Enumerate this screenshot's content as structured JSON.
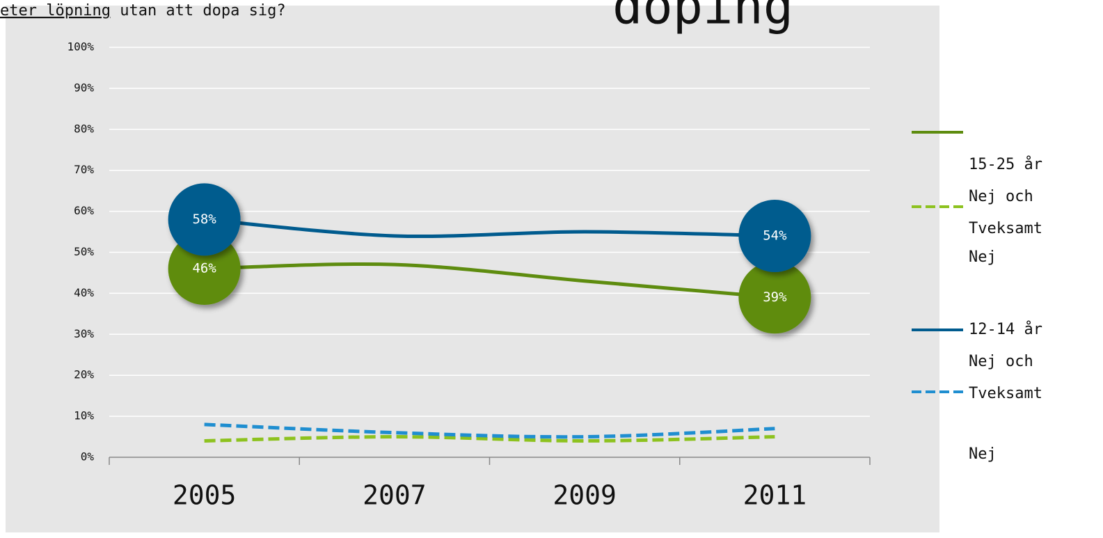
{
  "chart_data": {
    "type": "line",
    "title": "doping",
    "subtitle": [
      "eter löpning",
      "utan att dopa sig?"
    ],
    "categories": [
      "2005",
      "2007",
      "2009",
      "2011"
    ],
    "series": [
      {
        "name": "15-25 år\nNej och\nTveksamt",
        "color": "#5e8c0f",
        "dash": false,
        "values": [
          46,
          47,
          43,
          39
        ],
        "value_labels": [
          "46%",
          null,
          null,
          "39%"
        ]
      },
      {
        "name": "Nej",
        "color": "#8dc21f",
        "dash": true,
        "values": [
          4,
          5,
          4,
          5
        ]
      },
      {
        "name": "12-14 år\nNej och\nTveksamt",
        "color": "#005b8e",
        "dash": false,
        "values": [
          58,
          54,
          55,
          54
        ],
        "value_labels": [
          "58%",
          null,
          null,
          "54%"
        ]
      },
      {
        "name": "Nej",
        "color": "#1f8ed0",
        "dash": true,
        "values": [
          8,
          6,
          5,
          7
        ]
      }
    ],
    "ylim": [
      0,
      100
    ],
    "yticks": [
      {
        "value": 0,
        "label": "0%"
      },
      {
        "value": 10,
        "label": "10%"
      },
      {
        "value": 20,
        "label": "20%"
      },
      {
        "value": 30,
        "label": "30%"
      },
      {
        "value": 40,
        "label": "40%"
      },
      {
        "value": 50,
        "label": "50%"
      },
      {
        "value": 60,
        "label": "60%"
      },
      {
        "value": 70,
        "label": "70%"
      },
      {
        "value": 80,
        "label": "80%"
      },
      {
        "value": 90,
        "label": "90%"
      },
      {
        "value": 100,
        "label": "100%"
      }
    ],
    "grid": true,
    "legend": "right"
  }
}
